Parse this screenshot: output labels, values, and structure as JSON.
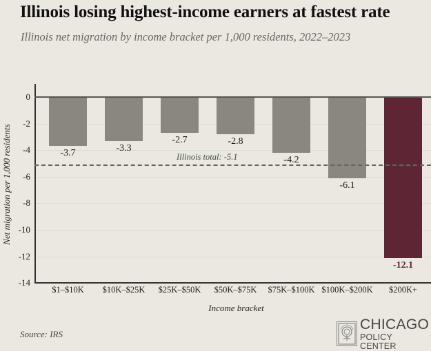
{
  "header": {
    "title": "Illinois losing highest-income earners at fastest rate",
    "subtitle": "Illinois net migration by income bracket per 1,000 residents, 2022–2023"
  },
  "footer": {
    "source": "Source: IRS",
    "logo_line1": "CHICAGO",
    "logo_line2": "POLICY CENTER"
  },
  "colors": {
    "bar_default": "#8a8780",
    "bar_highlight": "#5e2535",
    "reference_line": "#5d6962",
    "background": "#ebe8e1"
  },
  "chart_data": {
    "type": "bar",
    "title": "Illinois losing highest-income earners at fastest rate",
    "subtitle": "Illinois net migration by income bracket per 1,000 residents, 2022–2023",
    "xlabel": "Income bracket",
    "ylabel": "Net migration per 1,000 residents",
    "categories": [
      "$1–$10K",
      "$10K–$25K",
      "$25K–$50K",
      "$50K–$75K",
      "$75K–$100K",
      "$100K–$200K",
      "$200K+"
    ],
    "values": [
      -3.7,
      -3.3,
      -2.7,
      -2.8,
      -4.2,
      -6.1,
      -12.1
    ],
    "value_labels": [
      "-3.7",
      "-3.3",
      "-2.7",
      "-2.8",
      "-4.2",
      "-6.1",
      "-12.1"
    ],
    "highlight_index": 6,
    "ylim": [
      -14,
      1
    ],
    "yticks": [
      0,
      -2,
      -4,
      -6,
      -8,
      -10,
      -12,
      -14
    ],
    "ytick_labels": [
      "0",
      "-2",
      "-4",
      "-6",
      "-8",
      "-10",
      "-12",
      "-14"
    ],
    "grid": true,
    "reference_line": {
      "value": -5.1,
      "label": "Illinois total: -5.1",
      "style": "dashed"
    },
    "legend": null,
    "source": "Source: IRS"
  }
}
